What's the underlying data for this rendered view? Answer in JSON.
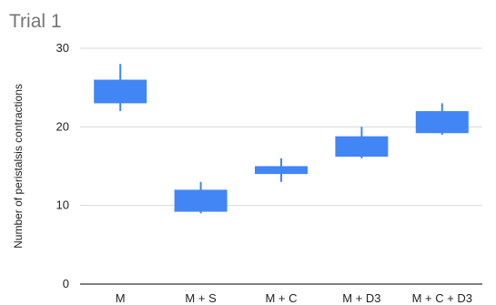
{
  "chart_data": {
    "type": "candlestick",
    "title": "Trial 1",
    "xlabel": "",
    "ylabel": "Number of peristalsis contractions",
    "ylim": [
      0,
      30
    ],
    "yticks": [
      0,
      10,
      20,
      30
    ],
    "grid": true,
    "legend": "none",
    "series_color": "#4285f4",
    "categories": [
      "M",
      "M + S",
      "M + C",
      "M + D3",
      "M + C + D3"
    ],
    "low": [
      22,
      9,
      13,
      16,
      19
    ],
    "open": [
      23,
      9.2,
      14,
      16.2,
      19.2
    ],
    "close": [
      26,
      12,
      15,
      18.8,
      22
    ],
    "high": [
      28,
      13,
      16,
      20,
      23
    ]
  }
}
